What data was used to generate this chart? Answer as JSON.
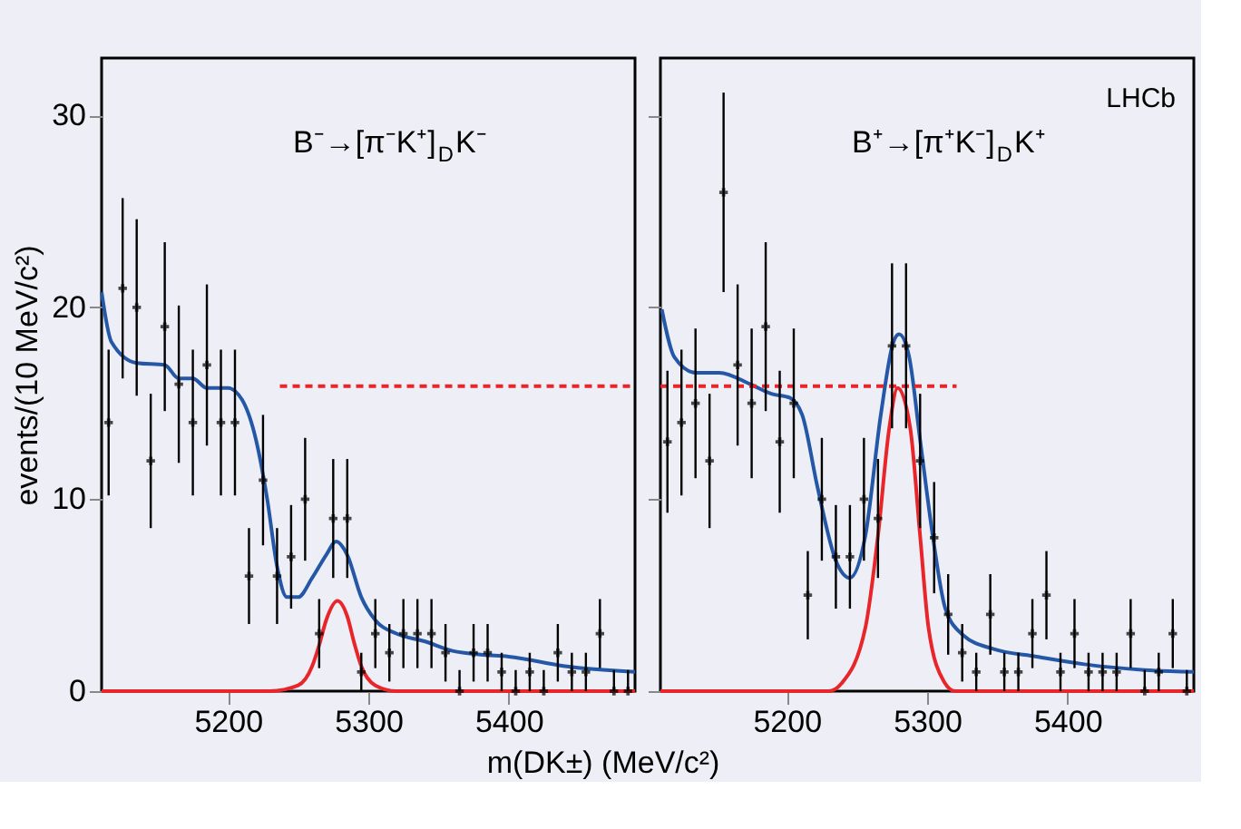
{
  "chart_data": [
    {
      "type": "scatter",
      "ylabel": "events/(10 MeV/c²)",
      "xlabel": "m(DK±) (MeV/c²)",
      "xlim": [
        5110,
        5490
      ],
      "xticks": [
        5200,
        5300,
        5400
      ],
      "ylim": [
        0,
        33
      ],
      "yticks": [
        0,
        10,
        20,
        30
      ],
      "grid": false,
      "annotations": [
        "B⁻→[π⁻K⁺]$_{D}$K⁻"
      ],
      "series": [
        {
          "type": "scatter",
          "color": "#000000",
          "marker": "cross",
          "x": [
            5115,
            5125,
            5135,
            5145,
            5155,
            5165,
            5175,
            5185,
            5195,
            5205,
            5215,
            5225,
            5235,
            5245,
            5255,
            5265,
            5275,
            5285,
            5295,
            5305,
            5315,
            5325,
            5335,
            5345,
            5355,
            5365,
            5375,
            5385,
            5395,
            5405,
            5415,
            5425,
            5435,
            5445,
            5455,
            5465,
            5475,
            5485
          ],
          "values": [
            14,
            21,
            20,
            12,
            19,
            16,
            14,
            17,
            14,
            14,
            6,
            11,
            6,
            7,
            10,
            3,
            9,
            9,
            1,
            3,
            2,
            3,
            3,
            3,
            2,
            0,
            2,
            2,
            1,
            0,
            1,
            0,
            2,
            1,
            1,
            3,
            0,
            0
          ],
          "errors": [
            3.8,
            4.7,
            4.6,
            3.5,
            4.4,
            4.1,
            3.8,
            4.2,
            3.8,
            3.8,
            2.5,
            3.4,
            2.5,
            2.7,
            3.2,
            1.8,
            3.1,
            3.1,
            1,
            1.8,
            1.5,
            1.8,
            1.8,
            1.8,
            1.5,
            [
              0,
              1.1
            ],
            1.5,
            1.5,
            1,
            [
              0,
              1.1
            ],
            1,
            [
              0,
              1.1
            ],
            1.5,
            1,
            1,
            1.8,
            [
              0,
              1.1
            ],
            [
              0,
              1.1
            ]
          ]
        },
        {
          "type": "line",
          "color": "#2458a6",
          "marker": "none",
          "line_style": "solid",
          "x": [
            5110,
            5117,
            5135,
            5155,
            5165,
            5175,
            5185,
            5200,
            5210,
            5220,
            5228,
            5235,
            5242,
            5250,
            5260,
            5270,
            5277,
            5285,
            5295,
            5305,
            5320,
            5340,
            5360,
            5380,
            5400,
            5440,
            5490
          ],
          "values": [
            20.8,
            18.2,
            17.1,
            17.0,
            16.3,
            16.3,
            15.8,
            15.8,
            15.2,
            13.1,
            10.0,
            6.5,
            4.9,
            4.9,
            5.9,
            7.1,
            7.8,
            7.1,
            4.9,
            3.7,
            3.0,
            2.6,
            2.1,
            1.9,
            1.8,
            1.3,
            1.0
          ]
        },
        {
          "type": "line",
          "color": "#e8262a",
          "marker": "none",
          "line_style": "solid",
          "x": [
            5110,
            5230,
            5250,
            5260,
            5265,
            5270,
            5278,
            5285,
            5290,
            5295,
            5305,
            5320,
            5490
          ],
          "values": [
            0,
            0,
            0.3,
            1.3,
            2.4,
            3.7,
            4.7,
            3.9,
            2.5,
            1.3,
            0.3,
            0,
            0
          ]
        },
        {
          "type": "line",
          "color": "#e8262a",
          "marker": "none",
          "line_style": "dashed",
          "x": [
            5237,
            5490
          ],
          "values": [
            15.9,
            15.9
          ]
        }
      ]
    },
    {
      "type": "scatter",
      "xlim": [
        5110,
        5490
      ],
      "xticks": [
        5200,
        5300,
        5400
      ],
      "ylim": [
        0,
        33
      ],
      "yticks": [
        0,
        10,
        20,
        30
      ],
      "tick_labels": "x",
      "grid": false,
      "annotations": [
        "LHCb",
        "B⁺→[π⁺K⁻]$_{D}$K⁺"
      ],
      "series": [
        {
          "type": "scatter",
          "color": "#000000",
          "marker": "cross",
          "x": [
            5115,
            5125,
            5135,
            5145,
            5155,
            5165,
            5175,
            5185,
            5195,
            5205,
            5215,
            5225,
            5235,
            5245,
            5255,
            5265,
            5275,
            5285,
            5295,
            5305,
            5315,
            5325,
            5335,
            5345,
            5355,
            5365,
            5375,
            5385,
            5395,
            5405,
            5415,
            5425,
            5435,
            5445,
            5455,
            5465,
            5475,
            5485
          ],
          "values": [
            13,
            14,
            15,
            12,
            26,
            17,
            15,
            19,
            13,
            15,
            5,
            10,
            7,
            7,
            10,
            9,
            18,
            18,
            12,
            8,
            4,
            2,
            1,
            4,
            1,
            1,
            3,
            5,
            1,
            3,
            1,
            1,
            1,
            3,
            0,
            1,
            3,
            0
          ],
          "errors": [
            3.7,
            3.8,
            3.9,
            3.5,
            5.2,
            4.2,
            3.9,
            4.4,
            3.7,
            3.9,
            2.3,
            3.2,
            2.7,
            2.7,
            3.2,
            3.1,
            4.3,
            4.3,
            3.5,
            2.9,
            2.1,
            1.5,
            1,
            2.1,
            1,
            1,
            1.8,
            2.3,
            1,
            1.8,
            1,
            1,
            1,
            1.8,
            [
              0,
              1.1
            ],
            1,
            1.8,
            [
              0,
              1.1
            ]
          ]
        },
        {
          "type": "line",
          "color": "#2458a6",
          "marker": "none",
          "line_style": "solid",
          "x": [
            5111,
            5120,
            5135,
            5152,
            5174,
            5189,
            5202,
            5211,
            5222,
            5235,
            5245,
            5256,
            5267,
            5276,
            5280,
            5287,
            5295,
            5304,
            5313,
            5326,
            5347,
            5378,
            5412,
            5455,
            5490
          ],
          "values": [
            19.9,
            17.4,
            16.6,
            16.6,
            16.0,
            15.5,
            15.3,
            14.4,
            10.6,
            6.8,
            5.9,
            8.1,
            14.4,
            18.2,
            18.6,
            17.5,
            13.1,
            8.1,
            4.3,
            2.9,
            2.2,
            1.8,
            1.4,
            1.1,
            1.0
          ]
        },
        {
          "type": "line",
          "color": "#e8262a",
          "marker": "none",
          "line_style": "solid",
          "x": [
            5110,
            5230,
            5239,
            5256,
            5265,
            5273,
            5279,
            5288,
            5295,
            5301,
            5312,
            5320,
            5490
          ],
          "values": [
            0,
            0,
            0.4,
            3.3,
            8.1,
            13.7,
            15.8,
            13.7,
            8.1,
            3.3,
            0.5,
            0,
            0
          ]
        },
        {
          "type": "line",
          "color": "#e8262a",
          "marker": "none",
          "line_style": "dashed",
          "x": [
            5110,
            5321
          ],
          "values": [
            15.9,
            15.9
          ]
        }
      ]
    }
  ]
}
